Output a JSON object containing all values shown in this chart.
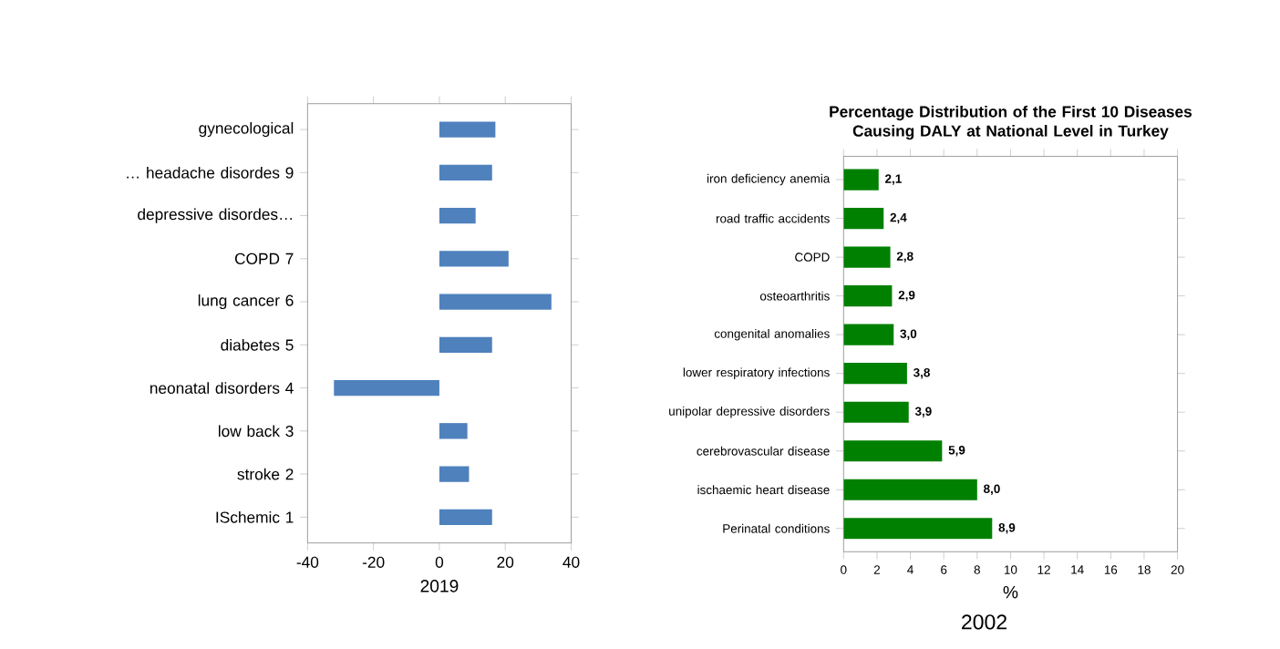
{
  "chart_data": [
    {
      "type": "bar",
      "orientation": "horizontal",
      "xlabel": "2019",
      "categories": [
        "gynecological",
        "… headache disordes 9",
        "depressive disordes…",
        "COPD 7",
        "lung cancer 6",
        "diabetes 5",
        "neonatal disorders 4",
        "low back 3",
        "stroke 2",
        "ISchemic 1"
      ],
      "values": [
        17,
        16,
        11,
        21,
        34,
        16,
        -32,
        8.5,
        9,
        16
      ],
      "color": "#4f81bd",
      "xlim": [
        -40,
        40
      ],
      "xticks": [
        -40,
        -20,
        0,
        20,
        40
      ]
    },
    {
      "type": "bar",
      "orientation": "horizontal",
      "title": "Percentage Distribution of the First 10 Diseases Causing DALY at National Level in Turkey",
      "xlabel": "%",
      "categories": [
        "iron deficiency anemia",
        "road traffic accidents",
        "COPD",
        "osteoarthritis",
        "congenital anomalies",
        "lower respiratory infections",
        "unipolar depressive disorders",
        "cerebrovascular disease",
        "ischaemic heart disease",
        "Perinatal conditions"
      ],
      "values": [
        2.1,
        2.4,
        2.8,
        2.9,
        3.0,
        3.8,
        3.9,
        5.9,
        8.0,
        8.9
      ],
      "value_labels": [
        "2,1",
        "2,4",
        "2,8",
        "2,9",
        "3,0",
        "3,8",
        "3,9",
        "5,9",
        "8,0",
        "8,9"
      ],
      "color": "#008000",
      "xlim": [
        0,
        20
      ],
      "xticks": [
        0,
        2,
        4,
        6,
        8,
        10,
        12,
        14,
        16,
        18,
        20
      ],
      "annotations": [
        "2002"
      ]
    }
  ]
}
